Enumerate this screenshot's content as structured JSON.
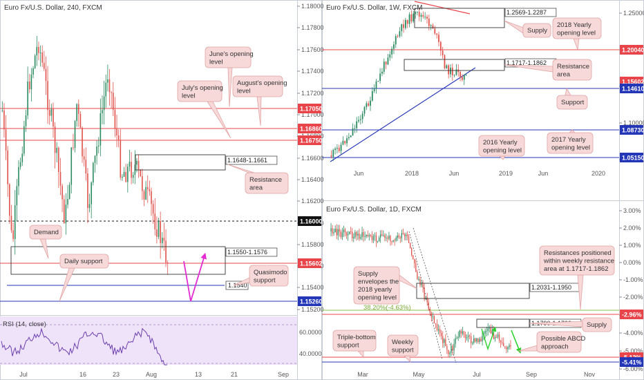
{
  "colors": {
    "up": "#2a8a5f",
    "down": "#e0514a",
    "red": "#e8444a",
    "blue": "#2436b8",
    "annotation_fill": "#f7d9d9",
    "annotation_stroke": "#e2a3a3",
    "magenta": "#e32bd2",
    "green": "#2bd22e",
    "rsi_fill": "#efe3fa",
    "fib": "#8ac24a"
  },
  "panels": {
    "h4": {
      "title": "Euro Fx/U.S. Dollar, 240, FXCM",
      "y_ticks": [
        "1.18000",
        "1.17800",
        "1.17600",
        "1.17400",
        "1.17200",
        "1.17000",
        "1.16800",
        "1.16600",
        "1.16400",
        "1.16200",
        "1.16000",
        "1.15800",
        "1.15600",
        "1.15400",
        "1.15200"
      ],
      "x_ticks": [
        "Jul",
        "16",
        "23",
        "Aug",
        "13",
        "21",
        "Sep"
      ],
      "badges": [
        {
          "text": "1.17050",
          "color": "#e8444a"
        },
        {
          "text": "1.16860",
          "color": "#e8444a"
        },
        {
          "text": "1.16750",
          "color": "#e8444a"
        },
        {
          "text": "1.16000",
          "color": "#111111"
        },
        {
          "text": "1.15602",
          "color": "#e8444a"
        },
        {
          "text": "1.15260",
          "color": "#2436b8"
        }
      ],
      "zones": [
        {
          "label": "1.1648-1.1661"
        },
        {
          "label": "1.1550-1.1576"
        },
        {
          "label": "1.1540"
        }
      ],
      "callouts": [
        {
          "text": "June's opening\nlevel"
        },
        {
          "text": "August's opening\nlevel"
        },
        {
          "text": "July's opening\nlevel"
        },
        {
          "text": "Resistance\narea"
        },
        {
          "text": "Demand"
        },
        {
          "text": "Daily support"
        },
        {
          "text": "Quasimodo\nsupport"
        }
      ]
    },
    "rsi": {
      "title": "RSI (14, close)",
      "y_ticks": [
        "60.0000",
        "40.0000"
      ]
    },
    "weekly": {
      "title": "Euro Fx/U.S. Dollar, 1W, FXCM",
      "y_ticks": [
        "1.25000",
        "1.20000",
        "1.15000",
        "1.10000",
        "1.05000"
      ],
      "x_ticks": [
        "Jun",
        "2018",
        "Jun",
        "2019",
        "Jun",
        "2020"
      ],
      "badges": [
        {
          "text": "1.20040",
          "color": "#e8444a"
        },
        {
          "text": "1.15602",
          "color": "#e8444a"
        },
        {
          "text": "1.14610",
          "color": "#2436b8"
        },
        {
          "text": "1.08730",
          "color": "#2436b8"
        },
        {
          "text": "1.05150",
          "color": "#2436b8"
        }
      ],
      "zones": [
        {
          "label": "1.2569-1.2287"
        },
        {
          "label": "1.1717-1.1862"
        }
      ],
      "callouts": [
        {
          "text": "Supply"
        },
        {
          "text": "2018 Yearly\nopening level"
        },
        {
          "text": "Resistance\narea"
        },
        {
          "text": "Support"
        },
        {
          "text": "2016 Yearly\nopening level"
        },
        {
          "text": "2017 Yearly\nopening level"
        }
      ]
    },
    "daily": {
      "title": "Euro Fx/U.S. Dollar, 1D, FXCM",
      "y_ticks": [
        "3.00%",
        "2.00%",
        "1.00%",
        "0.00%",
        "-1.00%",
        "-2.00%",
        "-3.00%",
        "-4.00%",
        "-5.00%",
        "-6.00%"
      ],
      "x_ticks": [
        "Mar",
        "May",
        "Jul",
        "Sep",
        "Nov"
      ],
      "badges": [
        {
          "text": "-2.96%",
          "color": "#e8444a"
        },
        {
          "text": "-5.12%",
          "color": "#e8444a"
        },
        {
          "text": "-5.41%",
          "color": "#2436b8"
        }
      ],
      "zones": [
        {
          "label": "1.2031-1.1950"
        },
        {
          "label": "1.1790-1.1732"
        }
      ],
      "fib_label": "38.20%(-4.63%)",
      "callouts": [
        {
          "text": "Supply\nenvelopes the\n2018 yearly\nopening level"
        },
        {
          "text": "Resistances positioned\nwithin weekly resistance\narea at 1.1717-1.1862"
        },
        {
          "text": "Supply"
        },
        {
          "text": "Triple-bottom\nsupport"
        },
        {
          "text": "Weekly\nsupport"
        },
        {
          "text": "Possible ABCD\napproach"
        }
      ]
    }
  },
  "chart_data": [
    {
      "type": "line",
      "title": "Euro Fx/U.S. Dollar, 240, FXCM",
      "ylim": [
        1.151,
        1.18
      ],
      "levels": [
        1.1705,
        1.1686,
        1.1675,
        1.16,
        1.15602,
        1.1526
      ],
      "zones": [
        [
          1.1648,
          1.1661
        ],
        [
          1.155,
          1.1576
        ]
      ],
      "support": 1.154
    },
    {
      "type": "line",
      "title": "Euro Fx/U.S. Dollar, 1W, FXCM",
      "ylim": [
        1.03,
        1.26
      ],
      "levels": [
        1.2004,
        1.1461,
        1.0873,
        1.0515
      ],
      "zones": [
        [
          1.2287,
          1.2569
        ],
        [
          1.1717,
          1.1862
        ]
      ]
    },
    {
      "type": "line",
      "title": "Euro Fx/U.S. Dollar, 1D, FXCM",
      "ylim": [
        -6.0,
        3.3
      ],
      "levels": [
        -2.96,
        -5.12,
        -5.41
      ],
      "zones": [
        [
          1.195,
          1.2031
        ],
        [
          1.1732,
          1.179
        ]
      ]
    }
  ]
}
